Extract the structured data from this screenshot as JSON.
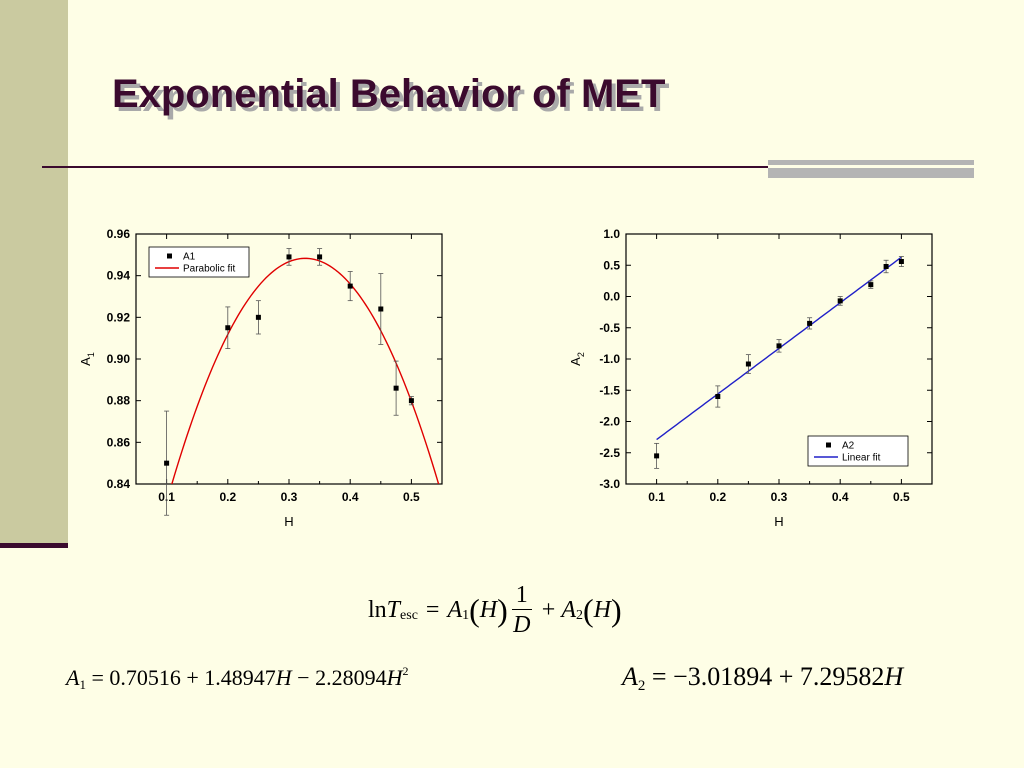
{
  "slide": {
    "title": "Exponential Behavior of MET",
    "colors": {
      "background": "#FEFEE6",
      "band": "#CACAA0",
      "accent": "#3B0A2E",
      "shadow": "#A9A9A9"
    }
  },
  "chart_data": [
    {
      "type": "scatter",
      "xlabel": "H",
      "ylabel": "A",
      "ylabel_subscript": "1",
      "xlim": [
        0.05,
        0.55
      ],
      "ylim": [
        0.84,
        0.96
      ],
      "xticks": [
        "0.1",
        "0.2",
        "0.3",
        "0.4",
        "0.5"
      ],
      "yticks": [
        "0.84",
        "0.86",
        "0.88",
        "0.90",
        "0.92",
        "0.94",
        "0.96"
      ],
      "grid": false,
      "legend_position": "top-left",
      "series": [
        {
          "name": "A1",
          "kind": "points",
          "color": "#000000",
          "x": [
            0.1,
            0.2,
            0.25,
            0.3,
            0.35,
            0.4,
            0.45,
            0.475,
            0.5
          ],
          "y": [
            0.85,
            0.915,
            0.92,
            0.949,
            0.949,
            0.935,
            0.924,
            0.886,
            0.88
          ],
          "error": [
            0.025,
            0.01,
            0.008,
            0.004,
            0.004,
            0.007,
            0.017,
            0.013,
            0.002
          ]
        },
        {
          "name": "Parabolic fit",
          "kind": "curve",
          "color": "#E00000",
          "coefficients": [
            0.70516,
            1.48947,
            -2.28094
          ]
        }
      ]
    },
    {
      "type": "scatter",
      "xlabel": "H",
      "ylabel": "A",
      "ylabel_subscript": "2",
      "xlim": [
        0.05,
        0.55
      ],
      "ylim": [
        -3.0,
        1.0
      ],
      "xticks": [
        "0.1",
        "0.2",
        "0.3",
        "0.4",
        "0.5"
      ],
      "yticks": [
        "-3.0",
        "-2.5",
        "-2.0",
        "-1.5",
        "-1.0",
        "-0.5",
        "0.0",
        "0.5",
        "1.0"
      ],
      "grid": false,
      "legend_position": "bottom-right",
      "series": [
        {
          "name": "A2",
          "kind": "points",
          "color": "#000000",
          "x": [
            0.1,
            0.2,
            0.25,
            0.3,
            0.35,
            0.4,
            0.45,
            0.475,
            0.5
          ],
          "y": [
            -2.55,
            -1.6,
            -1.08,
            -0.79,
            -0.43,
            -0.07,
            0.19,
            0.48,
            0.56
          ],
          "error": [
            0.2,
            0.17,
            0.15,
            0.1,
            0.09,
            0.07,
            0.06,
            0.1,
            0.08
          ]
        },
        {
          "name": "Linear fit",
          "kind": "line",
          "color": "#2020C8",
          "coefficients": [
            -3.01894,
            7.29582
          ]
        }
      ]
    }
  ],
  "equations": {
    "main": {
      "ln": "ln",
      "T": "T",
      "T_sub": "esc",
      "eq": "=",
      "A1": "A",
      "A1_sub": "1",
      "H": "H",
      "num": "1",
      "den": "D",
      "plus": "+",
      "A2": "A",
      "A2_sub": "2"
    },
    "a1": {
      "lhs": "A",
      "lhs_sub": "1",
      "rhs_1": " = 0.70516 + 1.48947",
      "H1": "H",
      "rhs_2": " − 2.28094",
      "H2": "H",
      "sup": "2"
    },
    "a2": {
      "lhs": "A",
      "lhs_sub": "2",
      "rhs": " = −3.01894 + 7.29582",
      "H": "H"
    }
  }
}
